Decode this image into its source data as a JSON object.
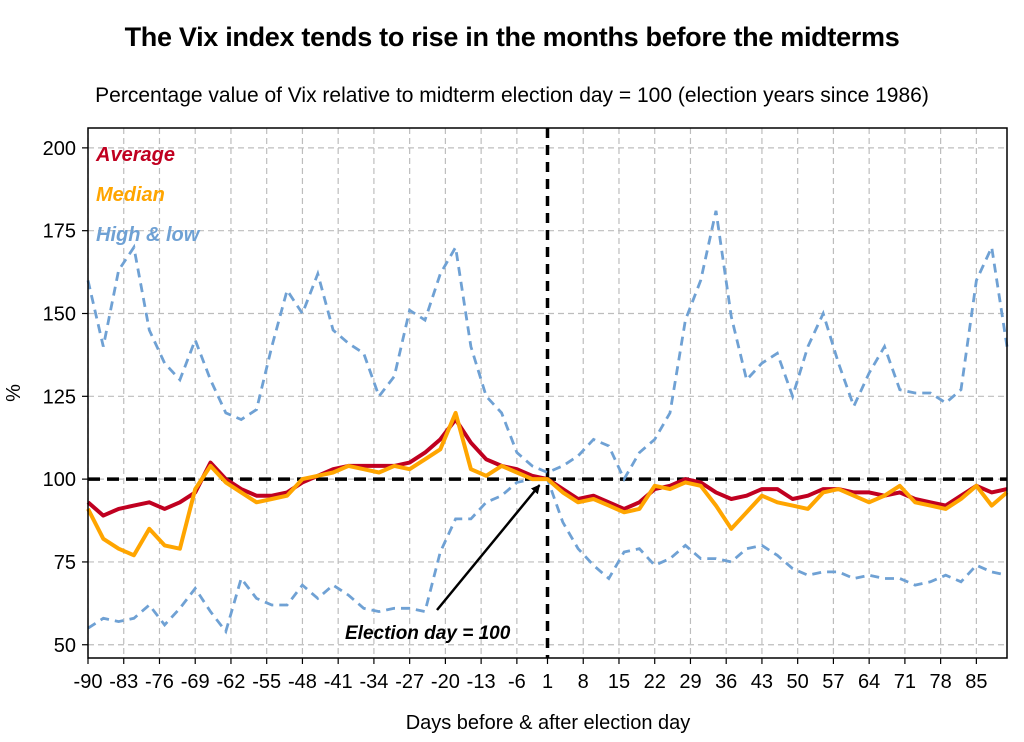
{
  "chart_data": {
    "type": "line",
    "title": "The Vix index tends to rise in the months before the midterms",
    "subtitle": "Percentage value of Vix relative to midterm election day = 100 (election years since 1986)",
    "xlabel": "Days before & after election day",
    "ylabel": "%",
    "ylim": [
      46,
      206
    ],
    "y_ticks": [
      50,
      75,
      100,
      125,
      150,
      175,
      200
    ],
    "x_tick_labels": [
      "-90",
      "-83",
      "-76",
      "-69",
      "-62",
      "-55",
      "-48",
      "-41",
      "-34",
      "-27",
      "-20",
      "-13",
      "-6",
      "1",
      "8",
      "15",
      "22",
      "29",
      "36",
      "43",
      "50",
      "57",
      "64",
      "71",
      "78",
      "85"
    ],
    "grid": true,
    "legend_position": "top-left",
    "reference_line": {
      "y": 100,
      "style": "dashed",
      "color": "#000000"
    },
    "election_day_line": {
      "style": "dashed",
      "color": "#000000"
    },
    "annotation": {
      "text": "Election day = 100",
      "points_to": {
        "x": 0,
        "y": 100
      }
    },
    "x": [
      -90,
      -87,
      -84,
      -81,
      -78,
      -75,
      -72,
      -69,
      -66,
      -63,
      -60,
      -57,
      -54,
      -51,
      -48,
      -45,
      -42,
      -39,
      -36,
      -33,
      -30,
      -27,
      -24,
      -21,
      -18,
      -15,
      -12,
      -9,
      -6,
      -3,
      0,
      3,
      6,
      9,
      12,
      15,
      18,
      21,
      24,
      27,
      30,
      33,
      36,
      39,
      42,
      45,
      48,
      51,
      54,
      57,
      60,
      63,
      66,
      69,
      72,
      75,
      78,
      81,
      84,
      87,
      90
    ],
    "series": [
      {
        "name": "Average",
        "color": "#C00020",
        "style": "solid",
        "values": [
          93,
          89,
          91,
          92,
          93,
          91,
          93,
          96,
          105,
          100,
          97,
          95,
          95,
          96,
          99,
          101,
          103,
          104,
          104,
          104,
          104,
          105,
          108,
          112,
          118,
          111,
          106,
          104,
          103,
          101,
          100,
          97,
          94,
          95,
          93,
          91,
          93,
          97,
          98,
          100,
          99,
          96,
          94,
          95,
          97,
          97,
          94,
          95,
          97,
          97,
          96,
          96,
          95,
          96,
          94,
          93,
          92,
          95,
          98,
          96,
          97
        ]
      },
      {
        "name": "Median",
        "color": "#FFA500",
        "style": "solid",
        "values": [
          91,
          82,
          79,
          77,
          85,
          80,
          79,
          97,
          104,
          99,
          96,
          93,
          94,
          95,
          100,
          101,
          102,
          104,
          103,
          102,
          104,
          103,
          106,
          109,
          120,
          103,
          101,
          104,
          102,
          100,
          100,
          96,
          93,
          94,
          92,
          90,
          91,
          98,
          97,
          99,
          98,
          92,
          85,
          90,
          95,
          93,
          92,
          91,
          96,
          97,
          95,
          93,
          95,
          98,
          93,
          92,
          91,
          94,
          98,
          92,
          96
        ]
      },
      {
        "name": "High & low",
        "color": "#6FA1D4",
        "style": "dashed",
        "band": true,
        "high": [
          160,
          140,
          163,
          170,
          145,
          135,
          130,
          142,
          130,
          120,
          118,
          121,
          140,
          157,
          150,
          162,
          145,
          141,
          138,
          125,
          131,
          151,
          148,
          162,
          170,
          140,
          125,
          120,
          108,
          104,
          102,
          104,
          107,
          112,
          110,
          100,
          108,
          112,
          120,
          148,
          160,
          181,
          149,
          130,
          135,
          138,
          125,
          140,
          150,
          135,
          122,
          132,
          140,
          127,
          126,
          126,
          123,
          127,
          160,
          170,
          140
        ],
        "low": [
          55,
          58,
          57,
          58,
          62,
          56,
          61,
          67,
          60,
          54,
          70,
          64,
          62,
          62,
          68,
          64,
          68,
          65,
          61,
          60,
          61,
          61,
          60,
          78,
          88,
          88,
          93,
          95,
          99,
          100,
          100,
          87,
          79,
          74,
          70,
          78,
          79,
          74,
          76,
          80,
          76,
          76,
          75,
          79,
          80,
          77,
          73,
          71,
          72,
          72,
          70,
          71,
          70,
          70,
          68,
          69,
          71,
          69,
          74,
          72,
          71
        ]
      }
    ]
  }
}
